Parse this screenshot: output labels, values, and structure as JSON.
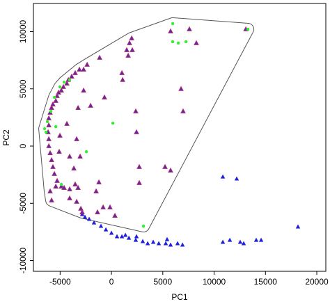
{
  "chart_data": {
    "type": "scatter",
    "xlabel": "PC1",
    "ylabel": "PC2",
    "xlim": [
      -7600,
      20880
    ],
    "ylim": [
      -10940,
      12460
    ],
    "xticks": [
      -5000,
      0,
      5000,
      10000,
      15000,
      20000
    ],
    "yticks": [
      -10000,
      -5000,
      0,
      5000,
      10000
    ],
    "series": [
      {
        "color": "#1f1fe0",
        "marker": "triangle",
        "x": [
          -2850,
          -2580,
          -2170,
          -1700,
          -1020,
          -540,
          0,
          540,
          1020,
          1700,
          2370,
          3050,
          3530,
          4070,
          4610,
          5290,
          5760,
          6440,
          6920,
          10850,
          11530,
          12540,
          12880,
          14100,
          14580,
          18170,
          10850,
          12200,
          5420,
          2440,
          1360
        ],
        "y": [
          -5960,
          -6200,
          -6380,
          -6690,
          -6990,
          -7300,
          -7600,
          -7900,
          -7900,
          -8030,
          -8210,
          -8330,
          -8510,
          -8390,
          -8510,
          -8510,
          -8630,
          -8510,
          -8630,
          -8390,
          -8210,
          -8390,
          -8510,
          -8210,
          -8210,
          -7050,
          -2680,
          -2860,
          -8150,
          -7900,
          -7780
        ]
      },
      {
        "color": "#5a2aa8",
        "marker": "triangle",
        "x": [
          1970,
          1760,
          1490,
          2030,
          1630,
          -1150,
          -2370,
          -2710,
          -3120,
          -3530,
          -3870,
          -4200,
          -4340,
          -4680,
          -4880,
          -5150,
          -5290,
          -5420,
          -5700,
          -5830,
          -5970,
          -6100,
          -6100,
          -6170,
          -6100,
          -6100,
          -5970,
          -5830,
          -5700,
          -5560,
          -5290,
          -4880,
          -4610,
          -4070,
          -3530,
          -3250,
          -5420,
          -4070,
          -3390,
          -2980,
          -2850,
          -1490,
          -1220,
          -810,
          1020,
          1090,
          -680,
          2370,
          2440,
          2710,
          2710,
          -140,
          340,
          -1360,
          5220,
          5760,
          6780,
          6980,
          5760,
          7590,
          8270,
          13090,
          -3390,
          -3660,
          -5090,
          -4070,
          -3050,
          -2710,
          -2030,
          -3250,
          -4340,
          -5020,
          -5970,
          -5830
        ],
        "y": [
          9420,
          9000,
          8390,
          8390,
          7900,
          7720,
          7110,
          6690,
          6690,
          6380,
          6080,
          5780,
          5470,
          5170,
          4860,
          4680,
          4380,
          3950,
          3650,
          3340,
          2920,
          2430,
          1820,
          1220,
          610,
          0,
          -610,
          -1220,
          -1820,
          -2430,
          -3040,
          -3530,
          -3650,
          -3770,
          -3340,
          -3650,
          -3530,
          -4560,
          -4860,
          -5470,
          -5780,
          -3950,
          -3160,
          -5350,
          6380,
          5780,
          4260,
          3040,
          1220,
          -1820,
          -3220,
          -5350,
          -6080,
          -5780,
          -1820,
          -2130,
          4990,
          3040,
          10030,
          10210,
          9000,
          10210,
          610,
          -1950,
          -490,
          -910,
          -910,
          4860,
          3530,
          3340,
          1950,
          910,
          -3950,
          -4740
        ]
      },
      {
        "color": "#33ee33",
        "marker": "circle",
        "x": [
          5970,
          5970,
          6510,
          7260,
          13290,
          140,
          -2440,
          3120,
          -4070,
          -4610,
          -5020,
          -5560,
          -5900,
          -6240,
          -6370,
          -6510,
          -4880,
          -5420
        ],
        "y": [
          10700,
          9120,
          9000,
          9120,
          10210,
          2010,
          -490,
          -6990,
          5780,
          5590,
          5170,
          4260,
          3040,
          2130,
          1220,
          1520,
          -3340,
          1700
        ]
      }
    ]
  }
}
